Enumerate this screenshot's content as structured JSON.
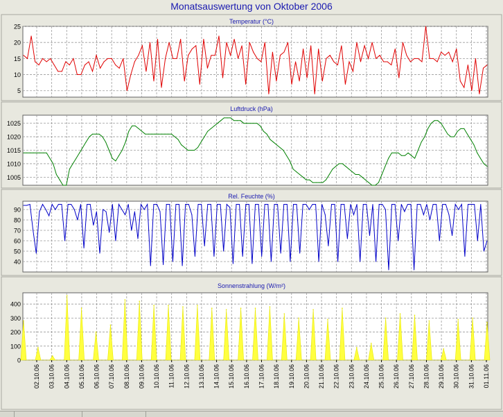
{
  "window": {
    "title": "Monatsauswertung von Oktober 2006"
  },
  "colors": {
    "temperature": "#e00000",
    "pressure": "#008000",
    "humidity": "#0000c8",
    "radiation": "#ffff40",
    "title": "#1a1ab0"
  },
  "x_axis": {
    "tick_labels": [
      "02.10.06",
      "03.10.06",
      "04.10.06",
      "05.10.06",
      "06.10.06",
      "07.10.06",
      "08.10.06",
      "09.10.06",
      "10.10.06",
      "11.10.06",
      "12.10.06",
      "13.10.06",
      "14.10.06",
      "15.10.06",
      "16.10.06",
      "17.10.06",
      "18.10.06",
      "19.10.06",
      "20.10.06",
      "21.10.06",
      "22.10.06",
      "23.10.06",
      "24.10.06",
      "25.10.06",
      "26.10.06",
      "27.10.06",
      "28.10.06",
      "29.10.06",
      "30.10.06",
      "31.10.06",
      "01.11.06"
    ]
  },
  "chart_data": [
    {
      "type": "line",
      "title": "Temperatur (°C)",
      "ylim": [
        3,
        25
      ],
      "yticks": [
        5,
        10,
        15,
        20,
        25
      ],
      "grid": true,
      "series": [
        {
          "values": [
            16,
            15,
            22,
            14,
            13,
            15,
            14,
            15,
            13,
            11,
            11,
            14,
            13,
            15,
            10,
            10,
            13,
            14,
            11,
            16,
            12,
            14,
            15,
            15,
            13,
            12,
            15,
            5,
            10,
            14,
            16,
            19,
            11,
            20,
            8,
            21,
            6,
            15,
            20,
            15,
            15,
            21,
            8,
            16,
            18,
            19,
            7,
            21,
            12,
            16,
            16,
            22,
            9,
            20,
            16,
            21,
            15,
            19,
            7,
            20,
            17,
            15,
            14,
            20,
            4,
            17,
            8,
            16,
            17,
            20,
            7,
            14,
            8,
            18,
            9,
            19,
            4,
            18,
            8,
            15,
            16,
            14,
            13,
            19,
            7,
            14,
            11,
            20,
            14,
            19,
            15,
            20,
            15,
            16,
            14,
            14,
            13,
            18,
            9,
            20,
            16,
            14,
            15,
            15,
            14,
            25,
            15,
            15,
            14,
            17,
            16,
            17,
            14,
            18,
            8,
            6,
            13,
            5,
            15,
            4,
            12,
            13
          ]
        }
      ]
    },
    {
      "type": "line",
      "title": "Luftdruck (hPa)",
      "ylim": [
        1002,
        1028
      ],
      "yticks": [
        1005,
        1010,
        1015,
        1020,
        1025
      ],
      "grid": true,
      "series": [
        {
          "values": [
            1014,
            1014,
            1014,
            1014,
            1014,
            1014,
            1014,
            1014,
            1012,
            1010,
            1006,
            1004,
            1002,
            1002,
            1008,
            1010,
            1012,
            1014,
            1016,
            1018,
            1020,
            1021,
            1021,
            1021,
            1020,
            1018,
            1015,
            1012,
            1011,
            1013,
            1015,
            1018,
            1022,
            1024,
            1024,
            1023,
            1022,
            1021,
            1021,
            1021,
            1021,
            1021,
            1021,
            1021,
            1021,
            1021,
            1020,
            1019,
            1017,
            1016,
            1015,
            1015,
            1015,
            1016,
            1018,
            1020,
            1022,
            1023,
            1024,
            1025,
            1026,
            1027,
            1027,
            1027,
            1026,
            1026,
            1026,
            1025,
            1025,
            1025,
            1025,
            1025,
            1024,
            1022,
            1021,
            1019,
            1018,
            1017,
            1016,
            1015,
            1013,
            1011,
            1008,
            1007,
            1006,
            1005,
            1004,
            1004,
            1003,
            1003,
            1003,
            1003,
            1004,
            1006,
            1008,
            1009,
            1010,
            1010,
            1009,
            1008,
            1007,
            1006,
            1006,
            1005,
            1004,
            1003,
            1002,
            1002,
            1003,
            1006,
            1009,
            1012,
            1014,
            1014,
            1014,
            1013,
            1013,
            1014,
            1013,
            1012,
            1015,
            1018,
            1020,
            1023,
            1025,
            1026,
            1026,
            1025,
            1023,
            1021,
            1020,
            1020,
            1022,
            1023,
            1023,
            1021,
            1019,
            1017,
            1014,
            1012,
            1010,
            1009
          ]
        }
      ]
    },
    {
      "type": "line",
      "title": "Rel. Feuchte (%)",
      "ylim": [
        30,
        98
      ],
      "yticks": [
        40,
        50,
        60,
        70,
        80,
        90
      ],
      "grid": true,
      "series": [
        {
          "values": [
            94,
            94,
            95,
            70,
            48,
            88,
            95,
            90,
            84,
            95,
            90,
            95,
            95,
            60,
            95,
            95,
            90,
            80,
            95,
            53,
            95,
            95,
            75,
            88,
            48,
            90,
            88,
            68,
            95,
            60,
            95,
            90,
            85,
            95,
            70,
            88,
            62,
            95,
            90,
            95,
            36,
            95,
            95,
            88,
            37,
            95,
            95,
            40,
            95,
            95,
            36,
            95,
            95,
            85,
            45,
            95,
            95,
            55,
            95,
            95,
            45,
            95,
            95,
            50,
            95,
            92,
            38,
            95,
            95,
            45,
            95,
            95,
            38,
            95,
            95,
            45,
            95,
            95,
            40,
            95,
            95,
            48,
            95,
            95,
            40,
            95,
            95,
            48,
            95,
            95,
            90,
            95,
            95,
            40,
            95,
            85,
            55,
            95,
            95,
            40,
            95,
            95,
            62,
            95,
            85,
            95,
            40,
            95,
            95,
            65,
            95,
            40,
            95,
            95,
            90,
            32,
            95,
            95,
            60,
            95,
            88,
            95,
            95,
            32,
            95,
            95,
            85,
            95,
            80,
            95,
            95,
            60,
            95,
            95,
            85,
            65,
            95,
            90,
            95,
            45,
            95,
            95,
            95,
            60,
            95,
            50,
            60
          ]
        }
      ]
    },
    {
      "type": "area",
      "title": "Sonnenstrahlung (W/m²)",
      "ylim": [
        0,
        480
      ],
      "yticks": [
        0,
        100,
        200,
        300,
        400
      ],
      "grid": true,
      "series": [
        {
          "values": [
            280,
            90,
            30,
            460,
            370,
            200,
            250,
            430,
            420,
            390,
            390,
            380,
            390,
            370,
            360,
            370,
            370,
            380,
            330,
            300,
            360,
            290,
            370,
            90,
            120,
            300,
            330,
            320,
            280,
            80,
            290,
            300,
            270
          ]
        }
      ]
    }
  ]
}
